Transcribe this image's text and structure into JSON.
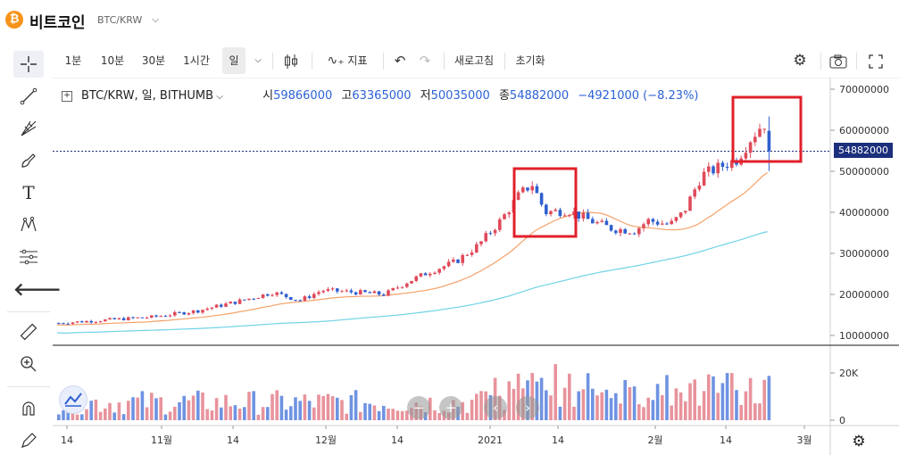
{
  "header": {
    "coin_icon_glyph": "₿",
    "coin_name": "비트코인",
    "pair": "BTC/KRW"
  },
  "toolbar": {
    "intervals": [
      "1분",
      "10분",
      "30분",
      "1시간",
      "일"
    ],
    "active_interval": "일",
    "indicator_label": "지표",
    "refresh_label": "새로고침",
    "reset_label": "초기화"
  },
  "legend": {
    "symbol": "BTC/KRW, 일, BITHUMB",
    "open_label": "시",
    "open": "59866000",
    "high_label": "고",
    "high": "63365000",
    "low_label": "저",
    "low": "50035000",
    "close_label": "종",
    "close": "54882000",
    "change": "−4921000 (−8.23%)"
  },
  "price_axis": {
    "ticks": [
      "70000000",
      "60000000",
      "50000000",
      "40000000",
      "30000000",
      "20000000",
      "10000000"
    ],
    "current_price": "54882000"
  },
  "volume_axis": {
    "ticks": [
      "20K",
      "0"
    ]
  },
  "time_axis": {
    "ticks": [
      "14",
      "11월",
      "14",
      "12월",
      "14",
      "2021",
      "14",
      "2월",
      "14",
      "3월"
    ]
  },
  "colors": {
    "up": "#e04a5a",
    "down": "#2f5fd0",
    "ma_short": "#f5a26a",
    "ma_long": "#6fd3e6",
    "highlight_box": "#e0202a",
    "price_tag_bg": "#1c2f7c"
  },
  "chart_data": {
    "type": "candlestick",
    "series_count": 1,
    "y_range": [
      5000000,
      72000000
    ],
    "highlight_boxes": 2,
    "last_candle": {
      "open": 59866000,
      "high": 63365000,
      "low": 50035000,
      "close": 54882000
    }
  }
}
